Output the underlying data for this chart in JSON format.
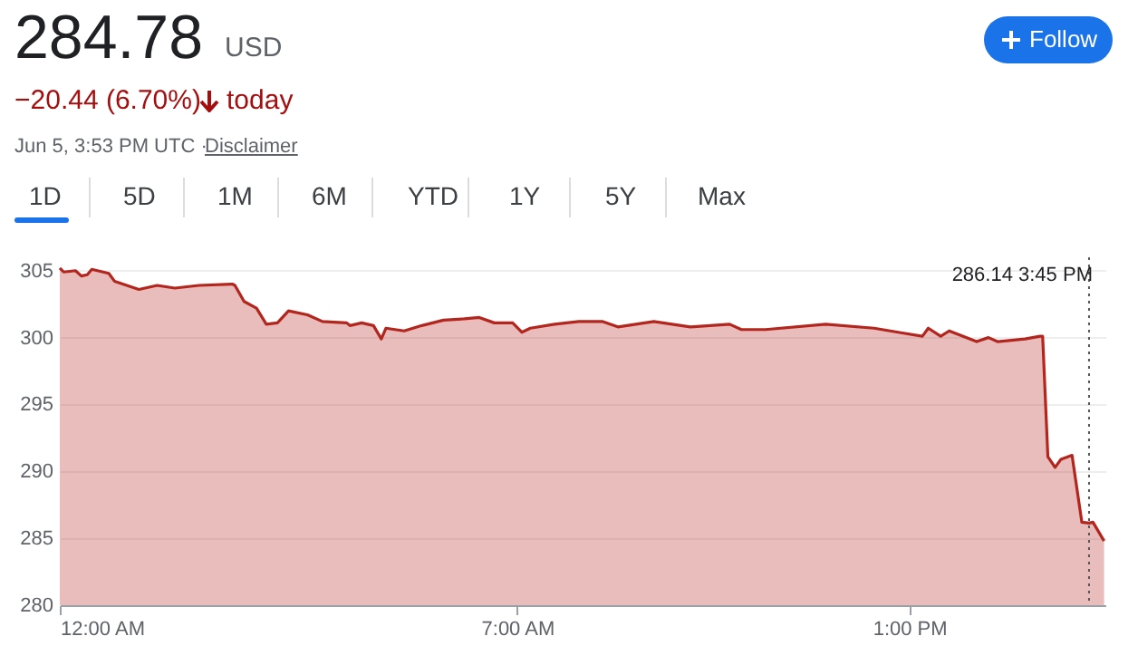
{
  "chart_data": {
    "type": "area",
    "title": "284.78",
    "annotations": [
      "USD",
      "−20.44 (6.70%)",
      "today",
      "Jun 5, 3:53 PM UTC · ",
      "Disclaimer",
      "1D",
      "5D",
      "1M",
      "6M",
      "YTD",
      "1Y",
      "5Y",
      "Max",
      "Follow",
      "286.14  3:45 PM"
    ],
    "x": [
      0,
      0.06,
      0.24,
      0.33,
      0.42,
      0.49,
      0.75,
      0.84,
      1.21,
      1.49,
      1.76,
      2.13,
      2.64,
      2.68,
      2.82,
      3.01,
      3.16,
      3.33,
      3.5,
      3.79,
      4.02,
      4.39,
      4.44,
      4.62,
      4.8,
      4.92,
      4.99,
      5.27,
      5.54,
      5.87,
      6.19,
      6.42,
      6.65,
      6.93,
      7.07,
      7.2,
      7.57,
      7.94,
      8.31,
      8.54,
      9.09,
      9.65,
      10.25,
      10.43,
      10.8,
      11.72,
      12.46,
      12.83,
      13.2,
      13.29,
      13.48,
      13.61,
      14.03,
      14.21,
      14.35,
      14.77,
      15.0,
      15.04,
      15.12,
      15.23,
      15.32,
      15.49,
      15.64,
      15.75,
      15.81,
      15.98
    ],
    "values": [
      305.2,
      304.9,
      305.0,
      304.6,
      304.7,
      305.1,
      304.8,
      304.2,
      303.6,
      303.9,
      303.7,
      303.9,
      304.0,
      303.9,
      302.7,
      302.2,
      301.0,
      301.1,
      302.0,
      301.7,
      301.2,
      301.1,
      300.9,
      301.1,
      300.9,
      299.9,
      300.7,
      300.5,
      300.9,
      301.3,
      301.4,
      301.5,
      301.1,
      301.1,
      300.4,
      300.7,
      301.0,
      301.2,
      301.2,
      300.8,
      301.2,
      300.8,
      301.0,
      300.6,
      300.6,
      301.0,
      300.7,
      300.4,
      300.1,
      300.7,
      300.1,
      300.5,
      299.7,
      300.0,
      299.7,
      299.9,
      300.1,
      300.1,
      291.1,
      290.3,
      290.9,
      291.2,
      286.2,
      286.14,
      286.2,
      284.8
    ],
    "color": "#b3261e",
    "xlim": [
      0,
      16
    ],
    "xticks": [
      {
        "value": 0,
        "label": "12:00 AM"
      },
      {
        "value": 7,
        "label": "7:00 AM"
      },
      {
        "value": 13,
        "label": "1:00 PM"
      }
    ],
    "ylim": [
      280,
      306
    ],
    "yticks": [
      280,
      285,
      290,
      295,
      300,
      305
    ],
    "grid": "y",
    "ref_lines": [
      {
        "axis": "x",
        "value": 15.75,
        "line_style": "dotted",
        "color": "#555555"
      }
    ]
  }
}
